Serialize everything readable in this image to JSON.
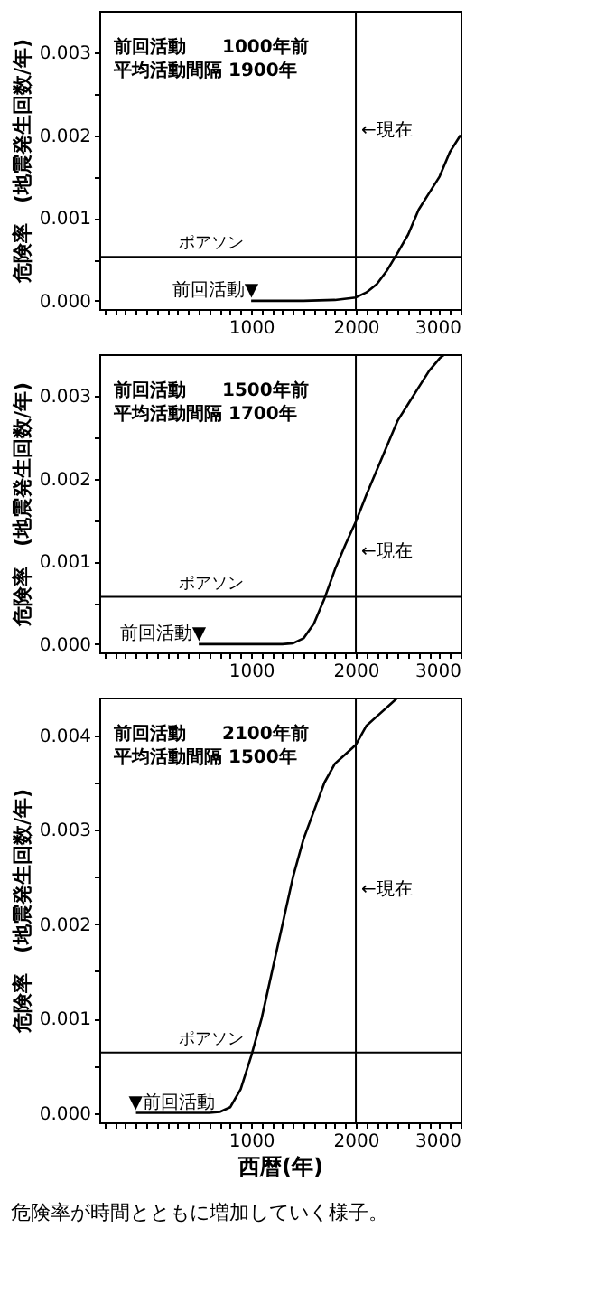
{
  "chart_data": [
    {
      "type": "line",
      "title": "前回活動　　1000年前",
      "subtitle": "平均活動間隔 1900年",
      "ylabel": "危険率　(地震発生回数/年)",
      "series": [
        {
          "color": "#000000",
          "x": [
            1000,
            1500,
            1800,
            2000,
            2100,
            2200,
            2300,
            2400,
            2500,
            2600,
            2700,
            2800,
            2900,
            3000
          ],
          "values": [
            0,
            0,
            1e-05,
            4e-05,
            0.0001,
            0.0002,
            0.00037,
            0.00058,
            0.0008,
            0.0011,
            0.0013,
            0.0015,
            0.0018,
            0.002
          ]
        }
      ],
      "xlim": [
        -450,
        3000
      ],
      "ylim": [
        -0.0001,
        0.0035
      ],
      "xticks": [
        {
          "value": -400,
          "label": null
        },
        {
          "value": -300,
          "label": null
        },
        {
          "value": -200,
          "label": null
        },
        {
          "value": -100,
          "label": null
        },
        {
          "value": 0,
          "label": null
        },
        {
          "value": 100,
          "label": null
        },
        {
          "value": 200,
          "label": null
        },
        {
          "value": 300,
          "label": null
        },
        {
          "value": 400,
          "label": null
        },
        {
          "value": 500,
          "label": null
        },
        {
          "value": 600,
          "label": null
        },
        {
          "value": 700,
          "label": null
        },
        {
          "value": 800,
          "label": null
        },
        {
          "value": 900,
          "label": null
        },
        1000,
        {
          "value": 1100,
          "label": null
        },
        {
          "value": 1200,
          "label": null
        },
        {
          "value": 1300,
          "label": null
        },
        {
          "value": 1400,
          "label": null
        },
        {
          "value": 1500,
          "label": null
        },
        {
          "value": 1600,
          "label": null
        },
        {
          "value": 1700,
          "label": null
        },
        {
          "value": 1800,
          "label": null
        },
        {
          "value": 1900,
          "label": null
        },
        2000,
        {
          "value": 2100,
          "label": null
        },
        {
          "value": 2200,
          "label": null
        },
        {
          "value": 2300,
          "label": null
        },
        {
          "value": 2400,
          "label": null
        },
        {
          "value": 2500,
          "label": null
        },
        {
          "value": 2600,
          "label": null
        },
        {
          "value": 2700,
          "label": null
        },
        {
          "value": 2800,
          "label": null
        },
        {
          "value": 2900,
          "label": null
        },
        3000
      ],
      "yticks": [
        {
          "value": 0,
          "label": "0.000"
        },
        {
          "value": 0.0005,
          "label": null
        },
        {
          "value": 0.001,
          "label": "0.001"
        },
        {
          "value": 0.0015,
          "label": null
        },
        {
          "value": 0.002,
          "label": "0.002"
        },
        {
          "value": 0.0025,
          "label": null
        },
        {
          "value": 0.003,
          "label": "0.003"
        }
      ],
      "ref_lines": [
        {
          "axis": "x",
          "value": 2000,
          "label": "←現在",
          "color": "#000000"
        },
        {
          "axis": "y",
          "value": 0.00053,
          "label": "ポアソン",
          "color": "#000000"
        }
      ],
      "annotations": [
        {
          "text": "前回活動▼",
          "x": 1000,
          "y": 0
        }
      ],
      "grid": false
    },
    {
      "type": "line",
      "title": "前回活動　　1500年前",
      "subtitle": "平均活動間隔 1700年",
      "ylabel": "危険率　(地震発生回数/年)",
      "series": [
        {
          "color": "#000000",
          "x": [
            500,
            1300,
            1400,
            1500,
            1600,
            1700,
            1800,
            1900,
            2000,
            2100,
            2200,
            2300,
            2400,
            2500,
            2600,
            2700,
            2800,
            2850
          ],
          "values": [
            0,
            0,
            1e-05,
            7e-05,
            0.00025,
            0.00055,
            0.0009,
            0.0012,
            0.00148,
            0.0018,
            0.0021,
            0.0024,
            0.0027,
            0.0029,
            0.0031,
            0.0033,
            0.00345,
            0.0035
          ]
        }
      ],
      "xlim": [
        -450,
        3000
      ],
      "ylim": [
        -0.0001,
        0.0035
      ],
      "xticks": [
        {
          "value": -400,
          "label": null
        },
        {
          "value": -300,
          "label": null
        },
        {
          "value": -200,
          "label": null
        },
        {
          "value": -100,
          "label": null
        },
        {
          "value": 0,
          "label": null
        },
        {
          "value": 100,
          "label": null
        },
        {
          "value": 200,
          "label": null
        },
        {
          "value": 300,
          "label": null
        },
        {
          "value": 400,
          "label": null
        },
        {
          "value": 500,
          "label": null
        },
        {
          "value": 600,
          "label": null
        },
        {
          "value": 700,
          "label": null
        },
        {
          "value": 800,
          "label": null
        },
        {
          "value": 900,
          "label": null
        },
        1000,
        {
          "value": 1100,
          "label": null
        },
        {
          "value": 1200,
          "label": null
        },
        {
          "value": 1300,
          "label": null
        },
        {
          "value": 1400,
          "label": null
        },
        {
          "value": 1500,
          "label": null
        },
        {
          "value": 1600,
          "label": null
        },
        {
          "value": 1700,
          "label": null
        },
        {
          "value": 1800,
          "label": null
        },
        {
          "value": 1900,
          "label": null
        },
        2000,
        {
          "value": 2100,
          "label": null
        },
        {
          "value": 2200,
          "label": null
        },
        {
          "value": 2300,
          "label": null
        },
        {
          "value": 2400,
          "label": null
        },
        {
          "value": 2500,
          "label": null
        },
        {
          "value": 2600,
          "label": null
        },
        {
          "value": 2700,
          "label": null
        },
        {
          "value": 2800,
          "label": null
        },
        {
          "value": 2900,
          "label": null
        },
        3000
      ],
      "yticks": [
        {
          "value": 0,
          "label": "0.000"
        },
        {
          "value": 0.0005,
          "label": null
        },
        {
          "value": 0.001,
          "label": "0.001"
        },
        {
          "value": 0.0015,
          "label": null
        },
        {
          "value": 0.002,
          "label": "0.002"
        },
        {
          "value": 0.0025,
          "label": null
        },
        {
          "value": 0.003,
          "label": "0.003"
        }
      ],
      "ref_lines": [
        {
          "axis": "x",
          "value": 2000,
          "label": "←現在",
          "color": "#000000"
        },
        {
          "axis": "y",
          "value": 0.00057,
          "label": "ポアソン",
          "color": "#000000"
        }
      ],
      "annotations": [
        {
          "text": "前回活動▼",
          "x": 500,
          "y": 0
        }
      ],
      "grid": false
    },
    {
      "type": "line",
      "title": "前回活動　　2100年前",
      "subtitle": "平均活動間隔 1500年",
      "ylabel": "危険率　(地震発生回数/年)",
      "xlabel": "西暦(年)",
      "series": [
        {
          "color": "#000000",
          "x": [
            -100,
            600,
            700,
            800,
            900,
            1000,
            1100,
            1200,
            1300,
            1400,
            1500,
            1600,
            1700,
            1800,
            1900,
            2000,
            2100,
            2200,
            2300,
            2400
          ],
          "values": [
            0,
            0,
            1e-05,
            6e-05,
            0.00025,
            0.0006,
            0.001,
            0.0015,
            0.002,
            0.0025,
            0.0029,
            0.0032,
            0.0035,
            0.0037,
            0.0038,
            0.0039,
            0.0041,
            0.0042,
            0.0043,
            0.0044
          ]
        }
      ],
      "xlim": [
        -450,
        3000
      ],
      "ylim": [
        -0.0001,
        0.0044
      ],
      "xticks": [
        {
          "value": -400,
          "label": null
        },
        {
          "value": -300,
          "label": null
        },
        {
          "value": -200,
          "label": null
        },
        {
          "value": -100,
          "label": null
        },
        {
          "value": 0,
          "label": null
        },
        {
          "value": 100,
          "label": null
        },
        {
          "value": 200,
          "label": null
        },
        {
          "value": 300,
          "label": null
        },
        {
          "value": 400,
          "label": null
        },
        {
          "value": 500,
          "label": null
        },
        {
          "value": 600,
          "label": null
        },
        {
          "value": 700,
          "label": null
        },
        {
          "value": 800,
          "label": null
        },
        {
          "value": 900,
          "label": null
        },
        1000,
        {
          "value": 1100,
          "label": null
        },
        {
          "value": 1200,
          "label": null
        },
        {
          "value": 1300,
          "label": null
        },
        {
          "value": 1400,
          "label": null
        },
        {
          "value": 1500,
          "label": null
        },
        {
          "value": 1600,
          "label": null
        },
        {
          "value": 1700,
          "label": null
        },
        {
          "value": 1800,
          "label": null
        },
        {
          "value": 1900,
          "label": null
        },
        2000,
        {
          "value": 2100,
          "label": null
        },
        {
          "value": 2200,
          "label": null
        },
        {
          "value": 2300,
          "label": null
        },
        {
          "value": 2400,
          "label": null
        },
        {
          "value": 2500,
          "label": null
        },
        {
          "value": 2600,
          "label": null
        },
        {
          "value": 2700,
          "label": null
        },
        {
          "value": 2800,
          "label": null
        },
        {
          "value": 2900,
          "label": null
        },
        3000
      ],
      "yticks": [
        {
          "value": 0,
          "label": "0.000"
        },
        {
          "value": 0.0005,
          "label": null
        },
        {
          "value": 0.001,
          "label": "0.001"
        },
        {
          "value": 0.0015,
          "label": null
        },
        {
          "value": 0.002,
          "label": "0.002"
        },
        {
          "value": 0.0025,
          "label": null
        },
        {
          "value": 0.003,
          "label": "0.003"
        },
        {
          "value": 0.0035,
          "label": null
        },
        {
          "value": 0.004,
          "label": "0.004"
        }
      ],
      "ref_lines": [
        {
          "axis": "x",
          "value": 2000,
          "label": "←現在",
          "color": "#000000"
        },
        {
          "axis": "y",
          "value": 0.00064,
          "label": "ポアソン",
          "color": "#000000"
        }
      ],
      "annotations": [
        {
          "text": "▼前回活動",
          "x": -100,
          "y": 0
        },
        "危険率が時間とともに増加していく様子。"
      ],
      "grid": false
    }
  ]
}
